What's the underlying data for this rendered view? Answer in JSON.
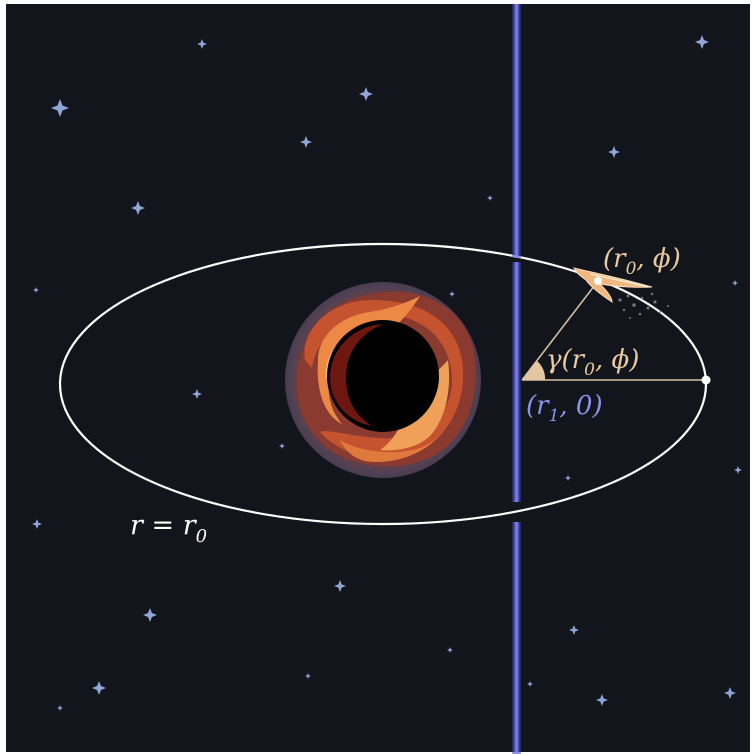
{
  "labels": {
    "orbit": "r = r",
    "orbit_sub": "0",
    "point_open": "(r",
    "point_sub": "0",
    "point_rest": ", ϕ)",
    "gamma_pre": "γ(r",
    "gamma_sub": "0",
    "gamma_rest": ", ϕ)",
    "origin_open": "(r",
    "origin_sub": "1",
    "origin_rest": ", 0)"
  },
  "colors": {
    "background": "#13151d",
    "frame": "#ffffff",
    "orbit": "#ffffff",
    "beam": "#4f55e0",
    "beam_core": "#c9ccff",
    "star": "#8fa6d8",
    "label_warm": "#e9c9a0",
    "label_blue": "#8c93ee",
    "angle_fill": "#e6c6a0",
    "disk_halo": "#5a4a5e",
    "disk_outer": "#b04a34",
    "disk_mid": "#d6673a",
    "disk_hot": "#f29a52",
    "shadow": "#000000",
    "probe": "#f2b77c"
  },
  "icons": {
    "black_hole": "black-hole-icon",
    "probe": "spacecraft-icon",
    "star": "sparkle-star-icon"
  }
}
